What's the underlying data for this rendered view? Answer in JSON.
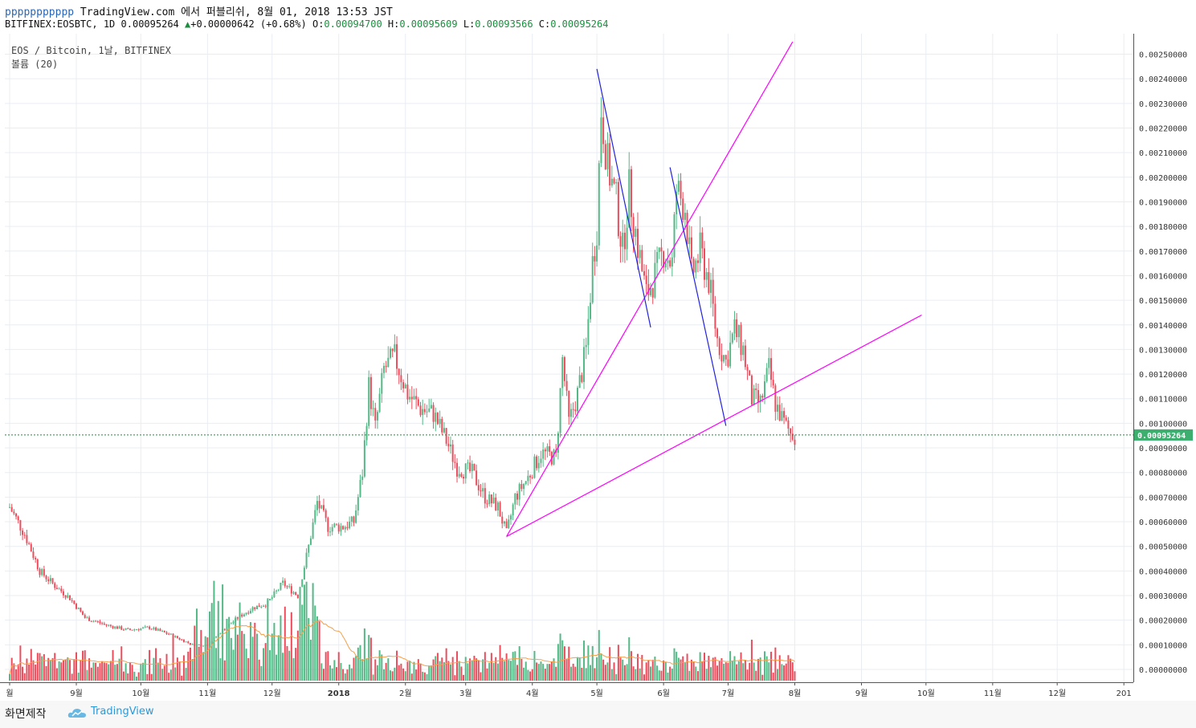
{
  "header": {
    "username": "ppppppppppp",
    "published_text": "TradingView.com 에서 퍼블리쉬, 8월 01, 2018 13:53 JST"
  },
  "quote": {
    "symbol": "BITFINEX:EOSBTC, 1D",
    "price": "0.00095264",
    "change": "+0.00000642 (+0.68%)",
    "o_label": "O:",
    "o": "0.00094700",
    "h_label": "H:",
    "h": "0.00095609",
    "l_label": "L:",
    "l": "0.00093566",
    "c_label": "C:",
    "c": "0.00095264"
  },
  "footer": {
    "made_with": "화면제작",
    "brand": "TradingView"
  },
  "chart_data": {
    "type": "candlestick",
    "title": "EOS / Bitcoin, 1날, BITFINEX",
    "volume_label": "볼륨 (20)",
    "y_ticks": [
      "0.00250000",
      "0.00240000",
      "0.00230000",
      "0.00220000",
      "0.00210000",
      "0.00200000",
      "0.00190000",
      "0.00180000",
      "0.00170000",
      "0.00160000",
      "0.00150000",
      "0.00140000",
      "0.00130000",
      "0.00120000",
      "0.00110000",
      "0.00100000",
      "0.00090000",
      "0.00080000",
      "0.00070000",
      "0.00060000",
      "0.00050000",
      "0.00040000",
      "0.00030000",
      "0.00020000",
      "0.00010000",
      "0.00000000"
    ],
    "ylim": [
      0.0,
      0.00255
    ],
    "current_price_label": "0.00095264",
    "x_ticks": [
      "월",
      "9월",
      "10월",
      "11월",
      "12월",
      "2018",
      "2월",
      "3월",
      "4월",
      "5월",
      "6월",
      "7월",
      "8월",
      "9월",
      "10월",
      "11월",
      "12월",
      "201"
    ],
    "colors": {
      "up": "#53b987",
      "down": "#eb4d5c",
      "trend": "#ff00ff",
      "pattern": "#2222dd",
      "ma": "#f5a04a"
    },
    "price_path": [
      [
        "2017-08-01",
        0.00066
      ],
      [
        "2017-08-08",
        0.00055
      ],
      [
        "2017-08-15",
        0.0004
      ],
      [
        "2017-08-22",
        0.00034
      ],
      [
        "2017-08-29",
        0.00029
      ],
      [
        "2017-09-05",
        0.00021
      ],
      [
        "2017-09-15",
        0.00018
      ],
      [
        "2017-09-25",
        0.00016
      ],
      [
        "2017-10-05",
        0.00017
      ],
      [
        "2017-10-15",
        0.00014
      ],
      [
        "2017-10-25",
        0.0001
      ],
      [
        "2017-11-01",
        0.0001
      ],
      [
        "2017-11-08",
        0.00016
      ],
      [
        "2017-11-15",
        0.00021
      ],
      [
        "2017-11-22",
        0.00025
      ],
      [
        "2017-11-29",
        0.00027
      ],
      [
        "2017-12-06",
        0.00035
      ],
      [
        "2017-12-13",
        0.0003
      ],
      [
        "2017-12-18",
        0.0005
      ],
      [
        "2017-12-22",
        0.00068
      ],
      [
        "2017-12-27",
        0.00058
      ],
      [
        "2018-01-03",
        0.00058
      ],
      [
        "2018-01-08",
        0.0006
      ],
      [
        "2018-01-12",
        0.0008
      ],
      [
        "2018-01-15",
        0.00115
      ],
      [
        "2018-01-18",
        0.00098
      ],
      [
        "2018-01-22",
        0.00122
      ],
      [
        "2018-01-27",
        0.00127
      ],
      [
        "2018-02-02",
        0.00112
      ],
      [
        "2018-02-08",
        0.00106
      ],
      [
        "2018-02-14",
        0.00104
      ],
      [
        "2018-02-20",
        0.00093
      ],
      [
        "2018-02-25",
        0.00082
      ],
      [
        "2018-03-04",
        0.0008
      ],
      [
        "2018-03-10",
        0.0007
      ],
      [
        "2018-03-16",
        0.00066
      ],
      [
        "2018-03-20",
        0.00055
      ],
      [
        "2018-03-24",
        0.0007
      ],
      [
        "2018-03-30",
        0.00078
      ],
      [
        "2018-04-05",
        0.00088
      ],
      [
        "2018-04-12",
        0.00086
      ],
      [
        "2018-04-15",
        0.00126
      ],
      [
        "2018-04-18",
        0.001
      ],
      [
        "2018-04-22",
        0.00112
      ],
      [
        "2018-04-26",
        0.0013
      ],
      [
        "2018-04-29",
        0.00165
      ],
      [
        "2018-05-01",
        0.0018
      ],
      [
        "2018-05-03",
        0.00228
      ],
      [
        "2018-05-06",
        0.00205
      ],
      [
        "2018-05-10",
        0.0019
      ],
      [
        "2018-05-13",
        0.0017
      ],
      [
        "2018-05-16",
        0.00195
      ],
      [
        "2018-05-20",
        0.00172
      ],
      [
        "2018-05-24",
        0.00152
      ],
      [
        "2018-05-28",
        0.0016
      ],
      [
        "2018-06-01",
        0.0017
      ],
      [
        "2018-06-05",
        0.00165
      ],
      [
        "2018-06-07",
        0.00195
      ],
      [
        "2018-06-11",
        0.00188
      ],
      [
        "2018-06-14",
        0.0016
      ],
      [
        "2018-06-18",
        0.0017
      ],
      [
        "2018-06-22",
        0.00158
      ],
      [
        "2018-06-26",
        0.00134
      ],
      [
        "2018-06-30",
        0.00125
      ],
      [
        "2018-07-04",
        0.00138
      ],
      [
        "2018-07-08",
        0.0013
      ],
      [
        "2018-07-12",
        0.0011
      ],
      [
        "2018-07-16",
        0.00108
      ],
      [
        "2018-07-20",
        0.00122
      ],
      [
        "2018-07-23",
        0.00108
      ],
      [
        "2018-07-27",
        0.001
      ],
      [
        "2018-07-30",
        0.00096
      ],
      [
        "2018-08-01",
        0.00095264
      ]
    ],
    "trend_lines": [
      {
        "from": [
          "2018-03-20",
          0.00054
        ],
        "to": [
          "2018-09-29",
          0.00144
        ]
      },
      {
        "from": [
          "2018-03-20",
          0.00054
        ],
        "to": [
          "2018-07-31",
          0.00255
        ]
      }
    ],
    "pattern_lines": [
      {
        "from": [
          "2018-05-01",
          0.00244
        ],
        "to": [
          "2018-05-26",
          0.00139
        ]
      },
      {
        "from": [
          "2018-06-04",
          0.00204
        ],
        "to": [
          "2018-06-30",
          0.00099
        ]
      }
    ]
  }
}
